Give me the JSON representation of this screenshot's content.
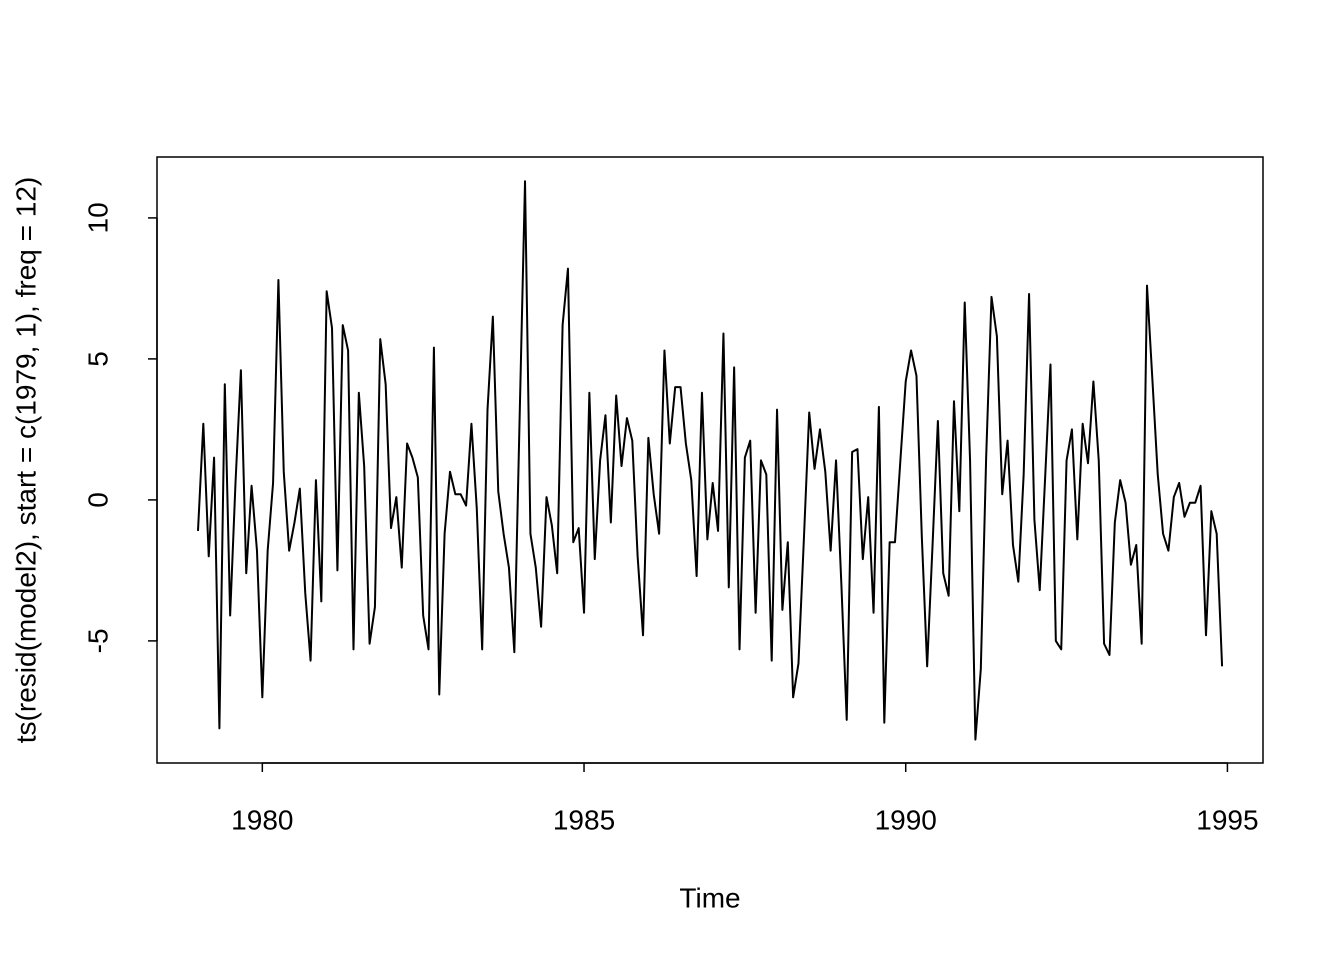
{
  "chart_data": {
    "type": "line",
    "x_label": "Time",
    "y_label": "ts(resid(model2), start = c(1979, 1), freq = 12)",
    "color": "#000000",
    "x": [
      1979,
      1979.083,
      1979.167,
      1979.25,
      1979.333,
      1979.417,
      1979.5,
      1979.583,
      1979.667,
      1979.75,
      1979.833,
      1979.917,
      1980,
      1980.083,
      1980.167,
      1980.25,
      1980.333,
      1980.417,
      1980.5,
      1980.583,
      1980.667,
      1980.75,
      1980.833,
      1980.917,
      1981,
      1981.083,
      1981.167,
      1981.25,
      1981.333,
      1981.417,
      1981.5,
      1981.583,
      1981.667,
      1981.75,
      1981.833,
      1981.917,
      1982,
      1982.083,
      1982.167,
      1982.25,
      1982.333,
      1982.417,
      1982.5,
      1982.583,
      1982.667,
      1982.75,
      1982.833,
      1982.917,
      1983,
      1983.083,
      1983.167,
      1983.25,
      1983.333,
      1983.417,
      1983.5,
      1983.583,
      1983.667,
      1983.75,
      1983.833,
      1983.917,
      1984,
      1984.083,
      1984.167,
      1984.25,
      1984.333,
      1984.417,
      1984.5,
      1984.583,
      1984.667,
      1984.75,
      1984.833,
      1984.917,
      1985,
      1985.083,
      1985.167,
      1985.25,
      1985.333,
      1985.417,
      1985.5,
      1985.583,
      1985.667,
      1985.75,
      1985.833,
      1985.917,
      1986,
      1986.083,
      1986.167,
      1986.25,
      1986.333,
      1986.417,
      1986.5,
      1986.583,
      1986.667,
      1986.75,
      1986.833,
      1986.917,
      1987,
      1987.083,
      1987.167,
      1987.25,
      1987.333,
      1987.417,
      1987.5,
      1987.583,
      1987.667,
      1987.75,
      1987.833,
      1987.917,
      1988,
      1988.083,
      1988.167,
      1988.25,
      1988.333,
      1988.417,
      1988.5,
      1988.583,
      1988.667,
      1988.75,
      1988.833,
      1988.917,
      1989,
      1989.083,
      1989.167,
      1989.25,
      1989.333,
      1989.417,
      1989.5,
      1989.583,
      1989.667,
      1989.75,
      1989.833,
      1989.917,
      1990,
      1990.083,
      1990.167,
      1990.25,
      1990.333,
      1990.417,
      1990.5,
      1990.583,
      1990.667,
      1990.75,
      1990.833,
      1990.917,
      1991,
      1991.083,
      1991.167,
      1991.25,
      1991.333,
      1991.417,
      1991.5,
      1991.583,
      1991.667,
      1991.75,
      1991.833,
      1991.917,
      1992,
      1992.083,
      1992.167,
      1992.25,
      1992.333,
      1992.417,
      1992.5,
      1992.583,
      1992.667,
      1992.75,
      1992.833,
      1992.917,
      1993,
      1993.083,
      1993.167,
      1993.25,
      1993.333,
      1993.417,
      1993.5,
      1993.583,
      1993.667,
      1993.75,
      1993.833,
      1993.917,
      1994,
      1994.083,
      1994.167,
      1994.25,
      1994.333,
      1994.417,
      1994.5,
      1994.583,
      1994.667,
      1994.75,
      1994.833,
      1994.917
    ],
    "values": [
      -1.1,
      2.7,
      -2.0,
      1.5,
      -8.1,
      4.1,
      -4.1,
      0.6,
      4.6,
      -2.6,
      0.5,
      -1.8,
      -7.0,
      -1.8,
      0.6,
      7.8,
      1.0,
      -1.8,
      -0.8,
      0.4,
      -3.3,
      -5.7,
      0.7,
      -3.6,
      7.4,
      6.1,
      -2.5,
      6.2,
      5.3,
      -5.3,
      3.8,
      1.2,
      -5.1,
      -3.8,
      5.7,
      4.1,
      -1.0,
      0.1,
      -2.4,
      2.0,
      1.5,
      0.8,
      -4.1,
      -5.3,
      5.4,
      -6.9,
      -1.2,
      1.0,
      0.2,
      0.2,
      -0.2,
      2.7,
      -0.3,
      -5.3,
      3.2,
      6.5,
      0.3,
      -1.2,
      -2.4,
      -5.4,
      3.0,
      11.3,
      -1.2,
      -2.4,
      -4.5,
      0.1,
      -0.9,
      -2.6,
      6.2,
      8.2,
      -1.5,
      -1.0,
      -4.0,
      3.8,
      -2.1,
      1.4,
      3.0,
      -0.8,
      3.7,
      1.2,
      2.9,
      2.1,
      -2.0,
      -4.8,
      2.2,
      0.2,
      -1.2,
      5.3,
      2.0,
      4.0,
      4.0,
      2.0,
      0.7,
      -2.7,
      3.8,
      -1.4,
      0.6,
      -1.1,
      5.9,
      -3.1,
      4.7,
      -5.3,
      1.5,
      2.1,
      -4.0,
      1.4,
      0.9,
      -5.7,
      3.2,
      -3.9,
      -1.5,
      -7.0,
      -5.8,
      -1.4,
      3.1,
      1.1,
      2.5,
      1.0,
      -1.8,
      1.4,
      -3.0,
      -7.8,
      1.7,
      1.8,
      -2.1,
      0.1,
      -4.0,
      3.3,
      -7.9,
      -1.5,
      -1.5,
      1.4,
      4.2,
      5.3,
      4.4,
      -1.3,
      -5.9,
      -1.6,
      2.8,
      -2.6,
      -3.4,
      3.5,
      -0.4,
      7.0,
      1.4,
      -8.5,
      -6.0,
      1.5,
      7.2,
      5.8,
      0.2,
      2.1,
      -1.6,
      -2.9,
      0.9,
      7.3,
      -0.7,
      -3.2,
      0.8,
      4.8,
      -5.0,
      -5.3,
      1.4,
      2.5,
      -1.4,
      2.7,
      1.3,
      4.2,
      1.4,
      -5.1,
      -5.5,
      -0.8,
      0.7,
      -0.1,
      -2.3,
      -1.6,
      -5.1,
      7.6,
      4.3,
      0.9,
      -1.2,
      -1.8,
      0.1,
      0.6,
      -0.6,
      -0.1,
      -0.1,
      0.5,
      -4.8,
      -0.4,
      -1.2,
      -5.9
    ],
    "xlim": [
      1978.363,
      1995.553
    ],
    "ylim": [
      -9.33,
      12.16
    ],
    "xticks": [
      1980,
      1985,
      1990,
      1995
    ],
    "yticks": [
      -5,
      0,
      5,
      10
    ]
  }
}
